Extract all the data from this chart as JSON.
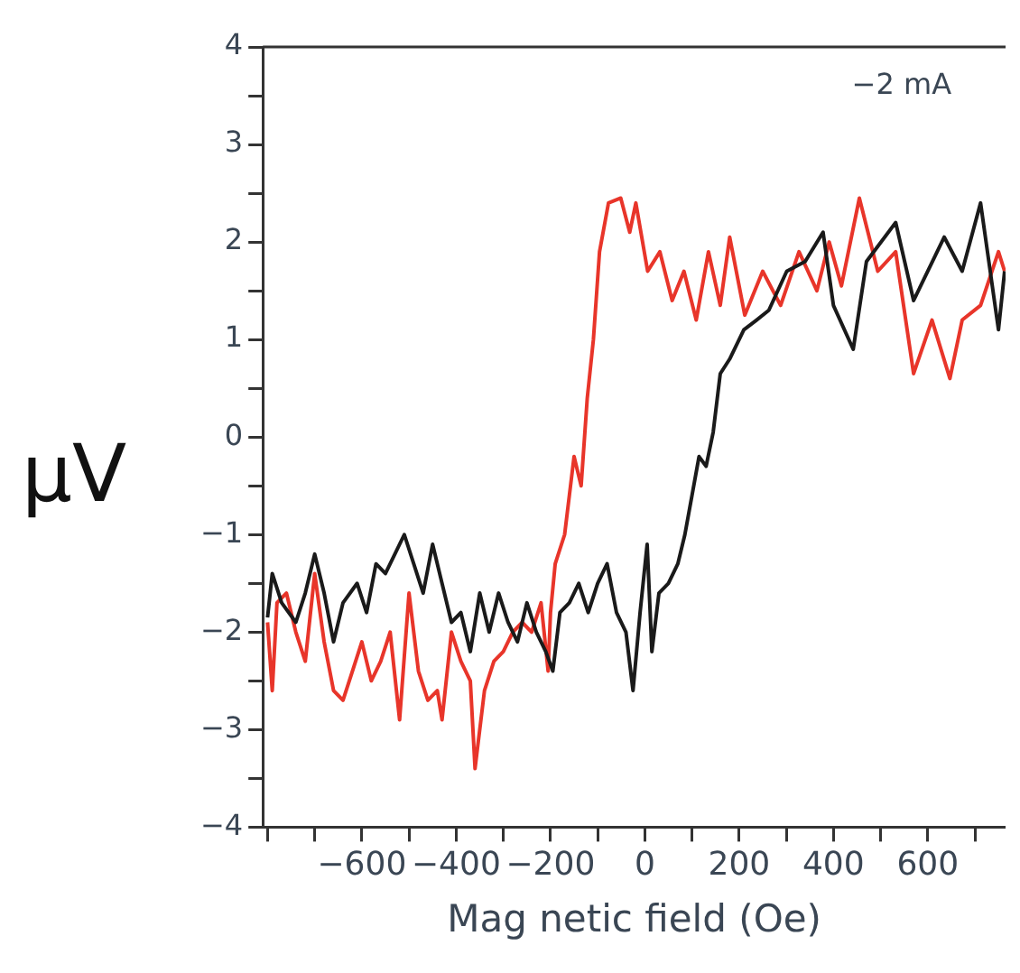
{
  "chart_data": {
    "type": "line",
    "xlabel": "Mag netic field (Oe)",
    "ylabel": "μV",
    "annotations": [
      "−2 mA"
    ],
    "xlim": [
      -810,
      765
    ],
    "ylim": [
      -4,
      4
    ],
    "xticks": [
      {
        "value": -800,
        "label": null
      },
      {
        "value": -700,
        "label": null
      },
      -600,
      {
        "value": -500,
        "label": null
      },
      -400,
      {
        "value": -300,
        "label": null
      },
      -200,
      {
        "value": -100,
        "label": null
      },
      0,
      {
        "value": 100,
        "label": null
      },
      200,
      {
        "value": 300,
        "label": null
      },
      400,
      {
        "value": 500,
        "label": null
      },
      600,
      {
        "value": 700,
        "label": null
      }
    ],
    "yticks": [
      -4,
      {
        "value": -3.5,
        "label": null
      },
      -3,
      {
        "value": -2.5,
        "label": null
      },
      -2,
      {
        "value": -1.5,
        "label": null
      },
      -1,
      {
        "value": -0.5,
        "label": null
      },
      0,
      {
        "value": 0.5,
        "label": null
      },
      1,
      {
        "value": 1.5,
        "label": null
      },
      2,
      {
        "value": 2.5,
        "label": null
      },
      3,
      {
        "value": 3.5,
        "label": null
      },
      4
    ],
    "grid": false,
    "legend": false,
    "marker": "none",
    "line_style": "solid",
    "series": [
      {
        "color": "#1a1a1a",
        "x": [
          -800,
          -790,
          -770,
          -740,
          -720,
          -700,
          -680,
          -660,
          -640,
          -610,
          -590,
          -570,
          -550,
          -530,
          -510,
          -490,
          -470,
          -450,
          -430,
          -410,
          -390,
          -370,
          -350,
          -330,
          -310,
          -290,
          -270,
          -250,
          -230,
          -210,
          -195,
          -180,
          -160,
          -140,
          -120,
          -100,
          -80,
          -60,
          -40,
          -25,
          -10,
          5,
          15,
          30,
          50,
          70,
          85,
          100,
          115,
          130,
          145,
          160,
          180,
          210,
          237,
          263,
          301,
          340,
          378,
          400,
          442,
          470,
          532,
          570,
          635,
          673,
          712,
          750,
          763
        ],
        "values": [
          -1.85,
          -1.4,
          -1.7,
          -1.9,
          -1.6,
          -1.2,
          -1.6,
          -2.1,
          -1.7,
          -1.5,
          -1.8,
          -1.3,
          -1.4,
          -1.2,
          -1.0,
          -1.3,
          -1.6,
          -1.1,
          -1.5,
          -1.9,
          -1.8,
          -2.2,
          -1.6,
          -2.0,
          -1.6,
          -1.9,
          -2.1,
          -1.7,
          -2.0,
          -2.2,
          -2.4,
          -1.8,
          -1.7,
          -1.5,
          -1.8,
          -1.5,
          -1.3,
          -1.8,
          -2.0,
          -2.6,
          -1.8,
          -1.1,
          -2.2,
          -1.6,
          -1.5,
          -1.3,
          -1.0,
          -0.6,
          -0.2,
          -0.3,
          0.05,
          0.65,
          0.8,
          1.1,
          1.2,
          1.3,
          1.7,
          1.8,
          2.1,
          1.35,
          0.9,
          1.8,
          2.2,
          1.4,
          2.05,
          1.7,
          2.4,
          1.1,
          1.7
        ]
      },
      {
        "color": "#e8352a",
        "x": [
          -800,
          -790,
          -780,
          -760,
          -740,
          -720,
          -700,
          -680,
          -660,
          -640,
          -620,
          -600,
          -580,
          -560,
          -540,
          -520,
          -500,
          -480,
          -460,
          -440,
          -430,
          -410,
          -390,
          -370,
          -360,
          -340,
          -320,
          -300,
          -280,
          -260,
          -240,
          -220,
          -205,
          -200,
          -190,
          -170,
          -160,
          -150,
          -135,
          -122,
          -109,
          -96,
          -77,
          -51,
          -32,
          -19,
          6,
          32,
          58,
          83,
          109,
          135,
          160,
          180,
          212,
          250,
          288,
          327,
          365,
          391,
          417,
          455,
          494,
          532,
          570,
          609,
          647,
          673,
          712,
          750,
          763
        ],
        "values": [
          -1.9,
          -2.6,
          -1.7,
          -1.6,
          -2.0,
          -2.3,
          -1.4,
          -2.1,
          -2.6,
          -2.7,
          -2.4,
          -2.1,
          -2.5,
          -2.3,
          -2.0,
          -2.9,
          -1.6,
          -2.4,
          -2.7,
          -2.6,
          -2.9,
          -2.0,
          -2.3,
          -2.5,
          -3.4,
          -2.6,
          -2.3,
          -2.2,
          -2.0,
          -1.9,
          -2.0,
          -1.7,
          -2.4,
          -1.8,
          -1.3,
          -1.0,
          -0.6,
          -0.2,
          -0.5,
          0.4,
          1.0,
          1.9,
          2.4,
          2.45,
          2.1,
          2.4,
          1.7,
          1.9,
          1.4,
          1.7,
          1.2,
          1.9,
          1.35,
          2.05,
          1.25,
          1.7,
          1.35,
          1.9,
          1.5,
          2.0,
          1.55,
          2.45,
          1.7,
          1.9,
          0.65,
          1.2,
          0.6,
          1.2,
          1.35,
          1.9,
          1.7
        ]
      }
    ]
  }
}
